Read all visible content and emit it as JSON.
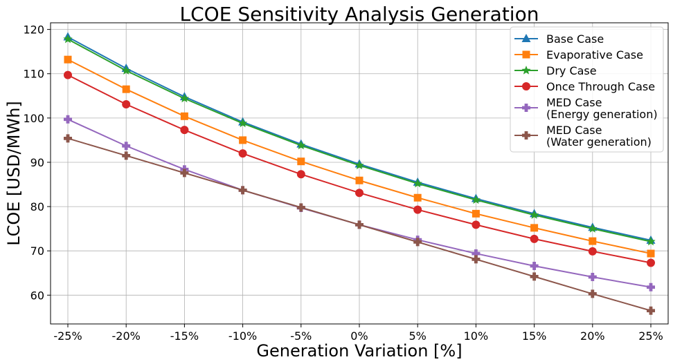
{
  "chart_data": {
    "type": "line",
    "title": "LCOE Sensitivity Analysis Generation",
    "xlabel": "Generation Variation [%]",
    "ylabel": "LCOE [USD/MWh]",
    "categories": [
      "-25%",
      "-20%",
      "-15%",
      "-10%",
      "-5%",
      "0%",
      "5%",
      "10%",
      "15%",
      "20%",
      "25%"
    ],
    "ylim": [
      53.5,
      121.5
    ],
    "yticks": [
      60,
      70,
      80,
      90,
      100,
      110,
      120
    ],
    "grid": true,
    "legend_position": "top-right",
    "series": [
      {
        "name": "Base Case",
        "color": "#1f77b4",
        "marker": "triangle",
        "values": [
          118.3,
          111.2,
          104.8,
          99.1,
          94.1,
          89.6,
          85.5,
          81.8,
          78.4,
          75.3,
          72.4
        ]
      },
      {
        "name": "Evaporative Case",
        "color": "#ff7f0e",
        "marker": "square",
        "values": [
          113.2,
          106.5,
          100.4,
          95.0,
          90.2,
          85.9,
          82.0,
          78.4,
          75.2,
          72.2,
          69.4
        ]
      },
      {
        "name": "Dry Case",
        "color": "#2ca02c",
        "marker": "star",
        "values": [
          117.8,
          110.7,
          104.4,
          98.8,
          93.8,
          89.3,
          85.2,
          81.5,
          78.1,
          75.0,
          72.1
        ]
      },
      {
        "name": "Once Through Case",
        "color": "#d62728",
        "marker": "circle",
        "values": [
          109.7,
          103.1,
          97.3,
          92.0,
          87.3,
          83.1,
          79.3,
          75.9,
          72.7,
          69.9,
          67.3
        ]
      },
      {
        "name": "MED Case\n(Energy generation)",
        "color": "#9467bd",
        "marker": "plus",
        "values": [
          99.7,
          93.7,
          88.4,
          83.7,
          79.7,
          75.9,
          72.5,
          69.4,
          66.6,
          64.1,
          61.8
        ]
      },
      {
        "name": "MED Case\n(Water generation)",
        "color": "#8c564b",
        "marker": "plus",
        "values": [
          95.4,
          91.5,
          87.6,
          83.7,
          79.8,
          75.9,
          72.0,
          68.1,
          64.2,
          60.3,
          56.5
        ]
      }
    ]
  }
}
